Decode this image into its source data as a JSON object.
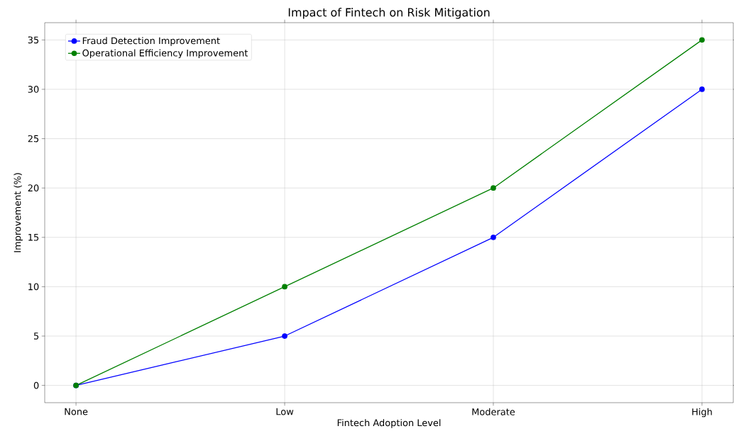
{
  "chart_data": {
    "type": "line",
    "title": "Impact of Fintech on Risk Mitigation",
    "xlabel": "Fintech Adoption Level",
    "ylabel": "Improvement (%)",
    "categories": [
      "None",
      "Low",
      "Moderate",
      "High"
    ],
    "series": [
      {
        "name": "Fraud Detection Improvement",
        "color": "#0000ff",
        "values": [
          0,
          5,
          15,
          30
        ]
      },
      {
        "name": "Operational Efficiency Improvement",
        "color": "#008000",
        "values": [
          0,
          10,
          20,
          35
        ]
      }
    ],
    "ylim": [
      -1.75,
      36.75
    ],
    "yticks": [
      0,
      5,
      10,
      15,
      20,
      25,
      30,
      35
    ],
    "grid": true,
    "legend": "top left",
    "marker": "circle",
    "line_style": "solid"
  }
}
